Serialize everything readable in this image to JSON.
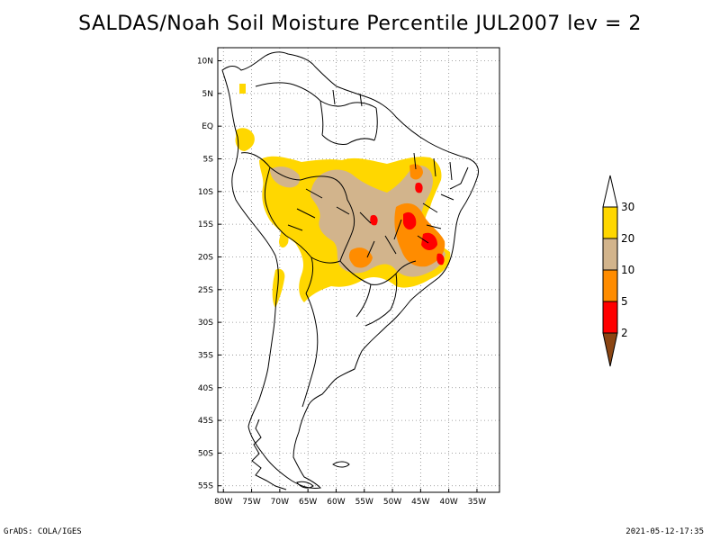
{
  "title": "SALDAS/Noah Soil Moisture Percentile JUL2007 lev = 2",
  "map": {
    "region": "South America",
    "lat_axis": {
      "range": [
        -56,
        12
      ],
      "ticks": [
        10,
        5,
        0,
        -5,
        -10,
        -15,
        -20,
        -25,
        -30,
        -35,
        -40,
        -45,
        -50,
        -55
      ],
      "labels": [
        "10N",
        "5N",
        "EQ",
        "5S",
        "10S",
        "15S",
        "20S",
        "25S",
        "30S",
        "35S",
        "40S",
        "45S",
        "50S",
        "55S"
      ]
    },
    "lon_axis": {
      "range": [
        -81,
        -31
      ],
      "ticks": [
        -80,
        -75,
        -70,
        -65,
        -60,
        -55,
        -50,
        -45,
        -40,
        -35
      ],
      "labels": [
        "80W",
        "75W",
        "70W",
        "65W",
        "60W",
        "55W",
        "50W",
        "45W",
        "40W",
        "35W"
      ]
    },
    "grid": "dotted",
    "colors": {
      "below_2": "#8B4513",
      "2_5": "#FF0000",
      "5_10": "#FF8C00",
      "10_20": "#D2B48C",
      "20_30": "#FFD700",
      "above_30": "#FFFFFF"
    }
  },
  "colorbar": {
    "labels": [
      "2",
      "5",
      "10",
      "20",
      "30"
    ],
    "colors": [
      "#8B4513",
      "#FF0000",
      "#FF8C00",
      "#D2B48C",
      "#FFD700",
      "#FFFFFF"
    ]
  },
  "footer": {
    "left": "GrADS: COLA/IGES",
    "right": "2021-05-12-17:35"
  }
}
